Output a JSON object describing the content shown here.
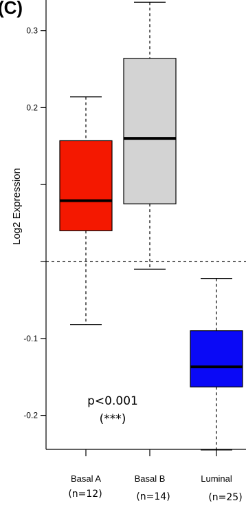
{
  "panel_label": "(C)",
  "chart_data": {
    "type": "box",
    "ylabel": "Log2 Expression",
    "xlabel": "",
    "ylim": [
      -0.272,
      0.34
    ],
    "yticks": [
      -0.2,
      -0.1,
      0.0,
      0.1,
      0.2,
      0.3
    ],
    "ytick_labels": [
      "-0.2",
      "-0.1",
      "",
      "",
      "0.2",
      "0.3"
    ],
    "reference_line": 0.0,
    "grid": false,
    "categories": [
      {
        "label": "Basal A",
        "n_label": "(n=12)"
      },
      {
        "label": "Basal B",
        "n_label": "(n=14)"
      },
      {
        "label": "Luminal",
        "n_label": "(n=25)"
      }
    ],
    "boxes": [
      {
        "name": "Basal A",
        "whisker_low": -0.082,
        "q1": 0.04,
        "median": 0.079,
        "q3": 0.157,
        "whisker_high": 0.214,
        "color": "#f41800"
      },
      {
        "name": "Basal B",
        "whisker_low": -0.01,
        "q1": 0.075,
        "median": 0.16,
        "q3": 0.264,
        "whisker_high": 0.337,
        "color": "#d3d3d3"
      },
      {
        "name": "Luminal",
        "whisker_low": -0.245,
        "q1": -0.163,
        "median": -0.137,
        "q3": -0.09,
        "whisker_high": -0.022,
        "color": "#0a09f6"
      }
    ],
    "annotation": {
      "line1": "p<0.001",
      "line2": "(***)"
    }
  }
}
